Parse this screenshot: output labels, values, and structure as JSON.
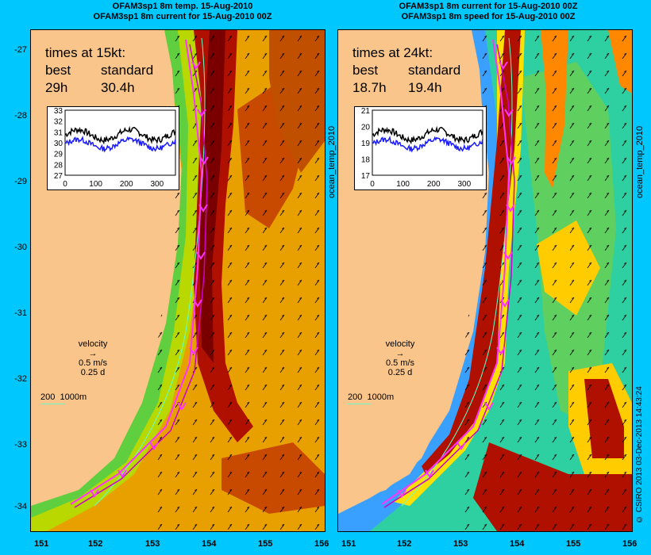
{
  "left": {
    "title_line1": "OFAM3sp1 8m temp. 15-Aug-2010",
    "title_line2": "OFAM3sp1 8m current for 15-Aug-2010 00Z",
    "times_header": "times at 15kt:",
    "best_label": "best",
    "standard_label": "standard",
    "best_value": "29h",
    "standard_value": "30.4h",
    "inset_y_ticks": [
      "33",
      "32",
      "31",
      "30",
      "29",
      "28",
      "27"
    ],
    "inset_x_ticks": [
      "0",
      "100",
      "200",
      "300"
    ],
    "inset_ylim": [
      27,
      33
    ],
    "inset_xlim": [
      0,
      360
    ],
    "best_series_color": "#1a1aff",
    "standard_series_color": "#000000"
  },
  "right": {
    "title_line1": "OFAM3sp1 8m current for 15-Aug-2010 00Z",
    "title_line2": "OFAM3sp1 8m speed for 15-Aug-2010 00Z",
    "times_header": "times at 24kt:",
    "best_label": "best",
    "standard_label": "standard",
    "best_value": "18.7h",
    "standard_value": "19.4h",
    "inset_y_ticks": [
      "21",
      "20",
      "19",
      "18",
      "17"
    ],
    "inset_x_ticks": [
      "0",
      "100",
      "200",
      "300"
    ],
    "inset_ylim": [
      17,
      21
    ],
    "inset_xlim": [
      0,
      360
    ]
  },
  "y_axis_ticks": [
    "-27",
    "-28",
    "-29",
    "-30",
    "-31",
    "-32",
    "-33",
    "-34"
  ],
  "x_axis_ticks": [
    "151",
    "152",
    "153",
    "154",
    "155",
    "156"
  ],
  "velocity_legend": {
    "title": "velocity",
    "speed": "0.5 m/s",
    "time": "0.25 d"
  },
  "scale_legend": {
    "left": "200",
    "right": "1000m"
  },
  "side_labels": {
    "left_panel": "ocean_temp_2010",
    "right_panel": "ocean_temp_2010",
    "credit": "© CSIRO 2013   03-Dec-2013 14:43:24"
  },
  "colors": {
    "background": "#00c8ff",
    "land": "#f9c58b",
    "route": "#ff33ff",
    "contour": "#66ffcc"
  }
}
